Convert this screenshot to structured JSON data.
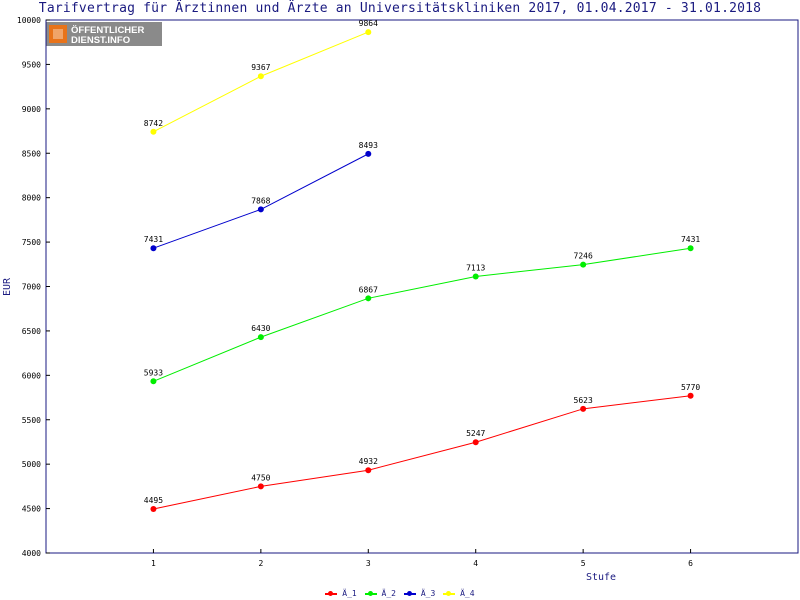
{
  "chart_data": {
    "type": "line",
    "title": "Tarifvertrag für Ärztinnen und Ärzte an Universitätskliniken 2017, 01.04.2017 - 31.01.2018",
    "xlabel": "Stufe",
    "ylabel": "EUR",
    "xlim": [
      0,
      7
    ],
    "ylim": [
      4000,
      10000
    ],
    "x_ticks": [
      1,
      2,
      3,
      4,
      5,
      6
    ],
    "y_ticks": [
      4000,
      4500,
      5000,
      5500,
      6000,
      6500,
      7000,
      7500,
      8000,
      8500,
      9000,
      9500,
      10000
    ],
    "legend_position": "bottom-center",
    "series": [
      {
        "name": "Ä_1",
        "color": "#ff0000",
        "x": [
          1,
          2,
          3,
          4,
          5,
          6
        ],
        "values": [
          4495,
          4750,
          4932,
          5247,
          5623,
          5770
        ]
      },
      {
        "name": "Ä_2",
        "color": "#00ee00",
        "x": [
          1,
          2,
          3,
          4,
          5,
          6
        ],
        "values": [
          5933,
          6430,
          6867,
          7113,
          7246,
          7431
        ]
      },
      {
        "name": "Ä_3",
        "color": "#0000cc",
        "x": [
          1,
          2,
          3
        ],
        "values": [
          7431,
          7868,
          8493
        ]
      },
      {
        "name": "Ä_4",
        "color": "#ffff00",
        "x": [
          1,
          2,
          3
        ],
        "values": [
          8742,
          9367,
          9864
        ]
      }
    ]
  },
  "logo": {
    "line1": "ÖFFENTLICHER",
    "line2": "DIENST.INFO",
    "colors": {
      "background": "#8a8a8a",
      "accent": "#e8731a"
    }
  },
  "colors": {
    "axis": "#1a1a80",
    "grid_tick": "#000000"
  }
}
